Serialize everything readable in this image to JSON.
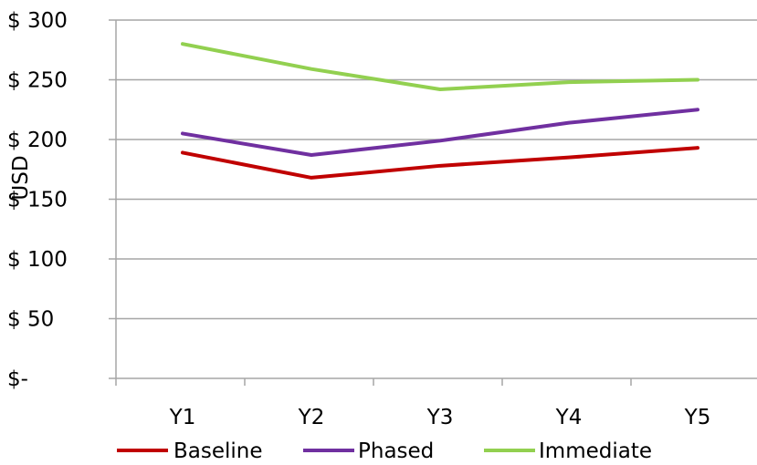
{
  "chart_data": {
    "type": "line",
    "title": "",
    "xlabel": "",
    "ylabel": "USD",
    "categories": [
      "Y1",
      "Y2",
      "Y3",
      "Y4",
      "Y5"
    ],
    "ylim": [
      0,
      300
    ],
    "yticks": [
      0,
      50,
      100,
      150,
      200,
      250,
      300
    ],
    "ytick_labels": [
      "$-",
      "$ 50",
      "$ 100",
      "$ 150",
      "$ 200",
      "$ 250",
      "$ 300"
    ],
    "grid": true,
    "legend_position": "bottom",
    "series": [
      {
        "name": "Baseline",
        "color": "#c00000",
        "values": [
          189,
          168,
          178,
          185,
          193
        ]
      },
      {
        "name": "Phased",
        "color": "#7030a0",
        "values": [
          205,
          187,
          199,
          214,
          225
        ]
      },
      {
        "name": "Immediate",
        "color": "#92d050",
        "values": [
          280,
          259,
          242,
          248,
          250
        ]
      }
    ]
  }
}
